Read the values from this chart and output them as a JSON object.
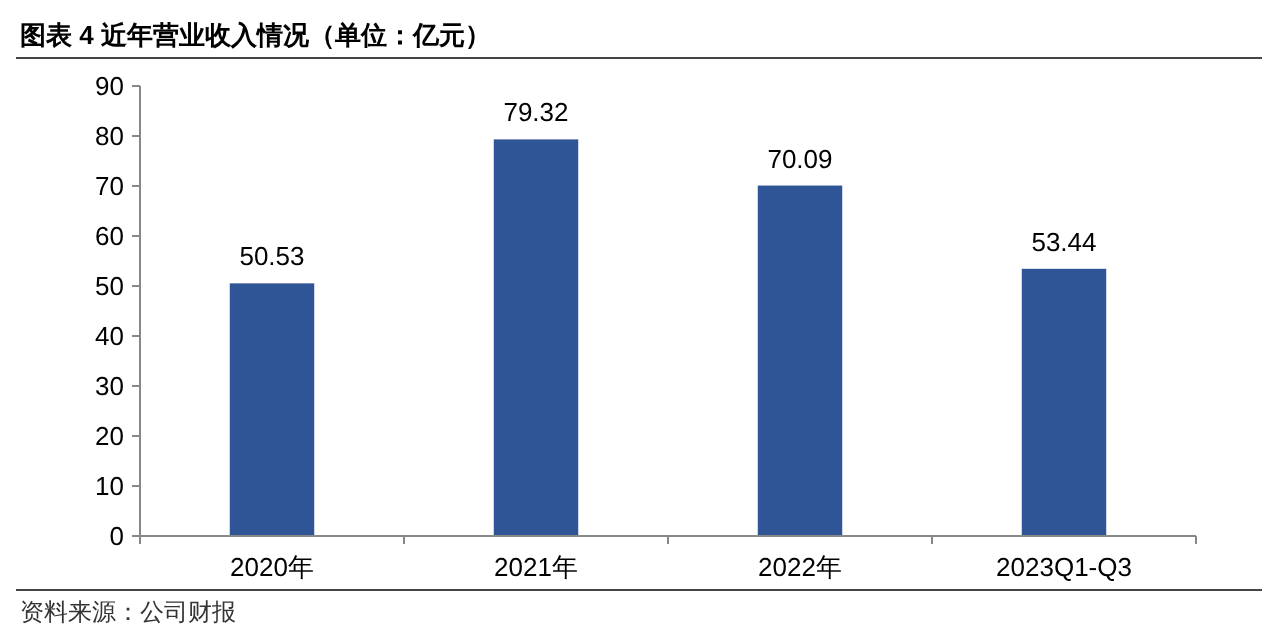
{
  "chart_data": {
    "type": "bar",
    "title": "图表 4 近年营业收入情况（单位：亿元）",
    "categories": [
      "2020年",
      "2021年",
      "2022年",
      "2023Q1-Q3"
    ],
    "values": [
      50.53,
      79.32,
      70.09,
      53.44
    ],
    "color": "#2f5597",
    "ylim": [
      0,
      90
    ],
    "yticks": [
      0,
      10,
      20,
      30,
      40,
      50,
      60,
      70,
      80,
      90
    ],
    "data_labels": true,
    "grid": false,
    "annotations": [
      "资料来源：公司财报"
    ]
  }
}
